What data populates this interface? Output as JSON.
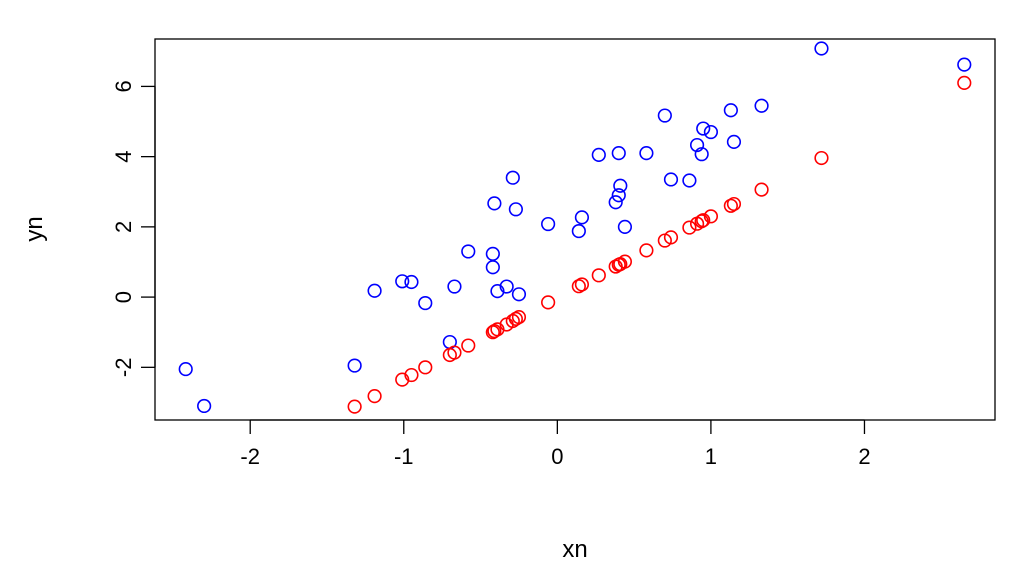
{
  "chart_data": {
    "type": "scatter",
    "xlabel": "xn",
    "ylabel": "yn",
    "xlim": [
      -2.62,
      2.85
    ],
    "ylim": [
      -3.5,
      7.35
    ],
    "x_ticks": [
      -2,
      -1,
      0,
      1,
      2
    ],
    "y_ticks": [
      -2,
      0,
      2,
      4,
      6
    ],
    "grid": false,
    "series": [
      {
        "color": "#0000ff",
        "marker": "open-circle",
        "points": [
          [
            -2.42,
            -2.05
          ],
          [
            -2.3,
            -3.1
          ],
          [
            -1.32,
            -1.95
          ],
          [
            -1.19,
            0.18
          ],
          [
            -1.01,
            0.45
          ],
          [
            -0.95,
            0.43
          ],
          [
            -0.86,
            -0.17
          ],
          [
            -0.7,
            -1.28
          ],
          [
            -0.67,
            0.3
          ],
          [
            -0.58,
            1.3
          ],
          [
            -0.42,
            1.23
          ],
          [
            -0.42,
            0.85
          ],
          [
            -0.41,
            2.67
          ],
          [
            -0.39,
            0.17
          ],
          [
            -0.33,
            0.3
          ],
          [
            -0.29,
            3.4
          ],
          [
            -0.27,
            2.5
          ],
          [
            -0.25,
            0.08
          ],
          [
            -0.06,
            2.08
          ],
          [
            0.14,
            1.88
          ],
          [
            0.16,
            2.27
          ],
          [
            0.27,
            4.05
          ],
          [
            0.38,
            2.7
          ],
          [
            0.4,
            2.9
          ],
          [
            0.4,
            4.1
          ],
          [
            0.41,
            3.17
          ],
          [
            0.44,
            2.0
          ],
          [
            0.58,
            4.1
          ],
          [
            0.7,
            5.17
          ],
          [
            0.74,
            3.35
          ],
          [
            0.86,
            3.32
          ],
          [
            0.91,
            4.33
          ],
          [
            0.94,
            4.07
          ],
          [
            0.95,
            4.8
          ],
          [
            1.0,
            4.7
          ],
          [
            1.13,
            5.32
          ],
          [
            1.15,
            4.42
          ],
          [
            1.33,
            5.45
          ],
          [
            1.72,
            7.08
          ],
          [
            2.65,
            6.62
          ]
        ]
      },
      {
        "color": "#ff0000",
        "marker": "open-circle",
        "points": [
          [
            -1.32,
            -3.12
          ],
          [
            -1.19,
            -2.82
          ],
          [
            -1.01,
            -2.35
          ],
          [
            -0.95,
            -2.22
          ],
          [
            -0.86,
            -2.0
          ],
          [
            -0.7,
            -1.65
          ],
          [
            -0.67,
            -1.58
          ],
          [
            -0.58,
            -1.38
          ],
          [
            -0.42,
            -1.0
          ],
          [
            -0.41,
            -0.97
          ],
          [
            -0.39,
            -0.92
          ],
          [
            -0.33,
            -0.78
          ],
          [
            -0.29,
            -0.68
          ],
          [
            -0.27,
            -0.62
          ],
          [
            -0.25,
            -0.57
          ],
          [
            -0.06,
            -0.15
          ],
          [
            0.14,
            0.31
          ],
          [
            0.16,
            0.36
          ],
          [
            0.27,
            0.62
          ],
          [
            0.38,
            0.87
          ],
          [
            0.4,
            0.92
          ],
          [
            0.41,
            0.94
          ],
          [
            0.44,
            1.01
          ],
          [
            0.58,
            1.33
          ],
          [
            0.7,
            1.61
          ],
          [
            0.74,
            1.7
          ],
          [
            0.86,
            1.98
          ],
          [
            0.91,
            2.09
          ],
          [
            0.94,
            2.16
          ],
          [
            0.95,
            2.19
          ],
          [
            1.0,
            2.3
          ],
          [
            1.13,
            2.6
          ],
          [
            1.15,
            2.65
          ],
          [
            1.33,
            3.06
          ],
          [
            1.72,
            3.96
          ],
          [
            2.65,
            6.1
          ]
        ]
      }
    ]
  }
}
